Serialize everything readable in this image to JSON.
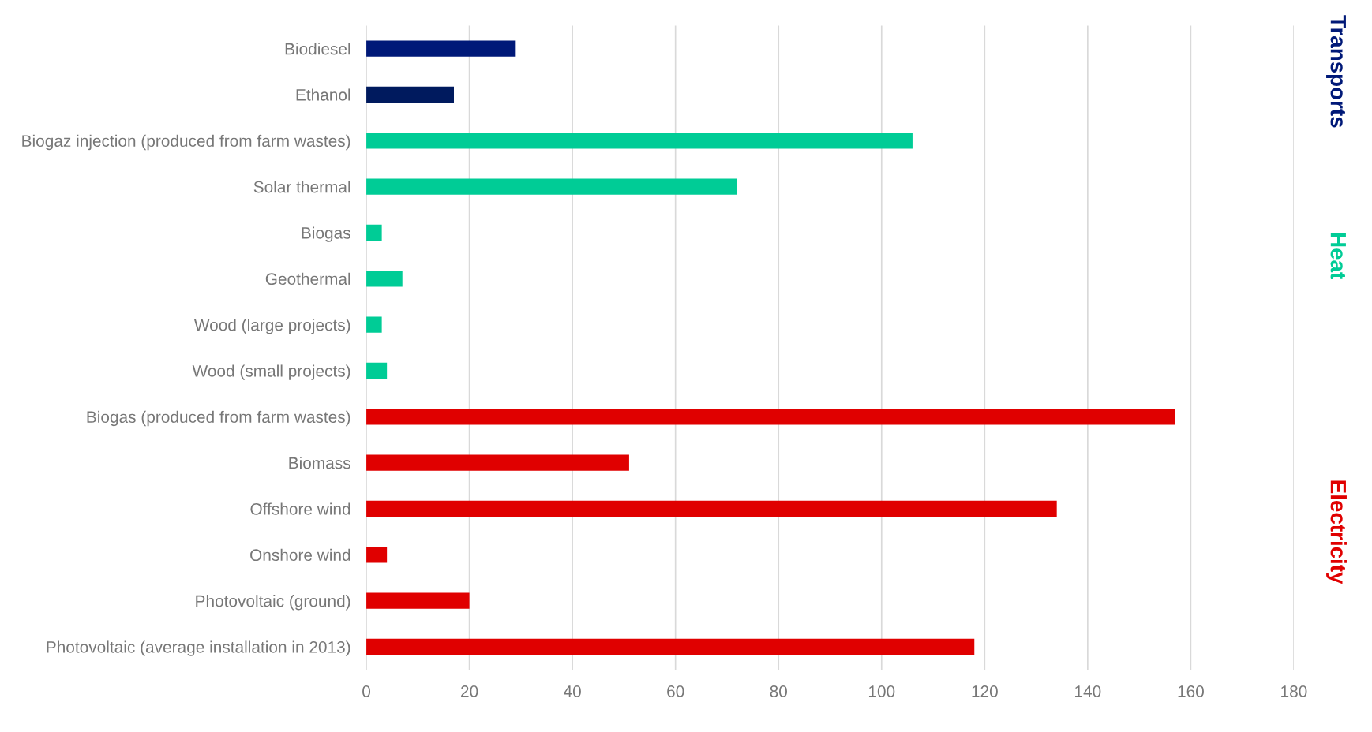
{
  "chart_data": {
    "type": "bar",
    "orientation": "horizontal",
    "categories": [
      "Biodiesel",
      "Ethanol",
      "Biogaz injection (produced from farm wastes)",
      "Solar thermal",
      "Biogas",
      "Geothermal",
      "Wood (large projects)",
      "Wood (small projects)",
      "Biogas (produced from farm wastes)",
      "Biomass",
      "Offshore wind",
      "Onshore wind",
      "Photovoltaic (ground)",
      "Photovoltaic (average installation in 2013)"
    ],
    "series": [
      {
        "name": "Transports",
        "color": "#001978",
        "colors": [
          "#001978",
          "#001a5e",
          null,
          null,
          null,
          null,
          null,
          null,
          null,
          null,
          null,
          null,
          null,
          null
        ],
        "values": [
          29,
          17,
          null,
          null,
          null,
          null,
          null,
          null,
          null,
          null,
          null,
          null,
          null,
          null
        ]
      },
      {
        "name": "Heat",
        "color": "#00cc96",
        "values": [
          null,
          null,
          106,
          72,
          3,
          7,
          3,
          4,
          null,
          null,
          null,
          null,
          null,
          null
        ]
      },
      {
        "name": "Electricity",
        "color": "#e00000",
        "values": [
          null,
          null,
          null,
          null,
          null,
          null,
          null,
          null,
          157,
          51,
          134,
          4,
          20,
          118
        ]
      }
    ],
    "xlim": [
      0,
      180
    ],
    "xticks": [
      0,
      20,
      40,
      60,
      80,
      100,
      120,
      140,
      160,
      180
    ],
    "grid": "x"
  }
}
